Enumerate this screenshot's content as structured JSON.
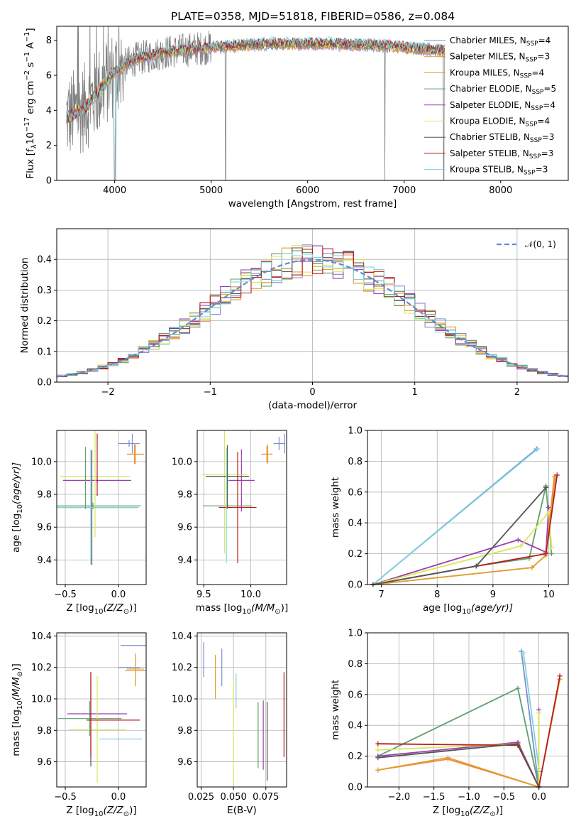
{
  "figure_title": "PLATE=0358, MJD=51818, FIBERID=0586, z=0.084",
  "models": [
    {
      "name": "Chabrier MILES",
      "nssp": "4",
      "color": "#7a8fd0"
    },
    {
      "name": "Salpeter MILES",
      "nssp": "3",
      "color": "#f08a4b"
    },
    {
      "name": "Kroupa MILES",
      "nssp": "4",
      "color": "#e0a030"
    },
    {
      "name": "Chabrier ELODIE",
      "nssp": "5",
      "color": "#5e9e6e"
    },
    {
      "name": "Salpeter ELODIE",
      "nssp": "4",
      "color": "#9b3db0"
    },
    {
      "name": "Kroupa ELODIE",
      "nssp": "4",
      "color": "#d8e85a"
    },
    {
      "name": "Chabrier STELIB",
      "nssp": "3",
      "color": "#555555"
    },
    {
      "name": "Salpeter STELIB",
      "nssp": "3",
      "color": "#b81c1c"
    },
    {
      "name": "Kroupa STELIB",
      "nssp": "3",
      "color": "#7fd3dc"
    }
  ],
  "chart_data": [
    {
      "id": "spectrum",
      "type": "line",
      "xlabel": "wavelength [Angstrom, rest frame]",
      "ylabel": "Flux [f",
      "ylabel_sub": "λ",
      "ylabel_mid": "10",
      "ylabel_sup1": "−17",
      "ylabel_tail1": " erg cm",
      "ylabel_sup2": "−2",
      "ylabel_tail2": " s",
      "ylabel_sup3": "−1",
      "ylabel_tail3": " A",
      "ylabel_sup4": "−1",
      "ylabel_end": "]",
      "xlim": [
        3400,
        8700
      ],
      "ylim": [
        0,
        8.8
      ],
      "xticks": [
        4000,
        5000,
        6000,
        7000,
        8000
      ],
      "yticks": [
        0,
        2,
        4,
        6,
        8
      ],
      "legend_location": "right",
      "legend_sub": "SSP",
      "continuum": {
        "x": [
          3500,
          3700,
          3850,
          4000,
          4200,
          4500,
          4800,
          5000,
          5300,
          5600,
          5900,
          6200,
          6500,
          6800,
          7000,
          7200,
          7400
        ],
        "y": [
          3.6,
          4.2,
          5.2,
          6.2,
          6.9,
          7.3,
          7.5,
          7.6,
          7.7,
          7.8,
          7.8,
          7.8,
          7.75,
          7.7,
          7.6,
          7.5,
          7.4
        ]
      }
    },
    {
      "id": "residuals",
      "type": "line",
      "xlabel": "(data-model)/error",
      "ylabel": "Normed distribution",
      "xlim": [
        -2.5,
        2.5
      ],
      "ylim": [
        0,
        0.5
      ],
      "xticks": [
        -2,
        -1,
        0,
        1,
        2
      ],
      "yticks": [
        0.0,
        0.1,
        0.2,
        0.3,
        0.4
      ],
      "grid": true,
      "legend_label": "𝒩(0, 1)",
      "legend_location": "top-right",
      "reference": "normal distribution, mean 0, sigma 1"
    },
    {
      "id": "age-vs-Z",
      "type": "scatter",
      "xlabel": "Z [log",
      "xlabel_sub": "10",
      "xlabel_rest": "(Z/Z",
      "xlabel_sub2": "⊙",
      "xlabel_end": ")]",
      "ylabel": "age  [log",
      "ylabel_sub": "10",
      "ylabel_rest": "(age/yr)]",
      "xlim": [
        -0.58,
        0.26
      ],
      "ylim": [
        9.25,
        10.19
      ],
      "xticks": [
        -0.5,
        0.0
      ],
      "yticks": [
        9.4,
        9.6,
        9.8,
        10.0
      ],
      "grid": true,
      "points": [
        {
          "m": 0,
          "x": 0.1,
          "y": 10.11,
          "xerr": 0.1,
          "yerr": 0.02
        },
        {
          "m": 1,
          "x": 0.16,
          "y": 10.045,
          "xerr": 0.08,
          "yerr": 0.06
        },
        {
          "m": 2,
          "x": 0.15,
          "y": 10.045,
          "xerr": 0.06,
          "yerr": 0.06
        },
        {
          "m": 3,
          "x": -0.24,
          "y": 9.73,
          "xerr": 0.45,
          "yerr": 0.02
        },
        {
          "m": 4,
          "x": -0.2,
          "y": 9.885,
          "xerr": 0.32,
          "yerr": 0.02
        },
        {
          "m": 5,
          "x": -0.22,
          "y": 9.91,
          "xerr": 0.33,
          "yerr": 0.37
        },
        {
          "m": 6,
          "x": -0.25,
          "y": 9.72,
          "xerr": 0.43,
          "yerr": 0.35
        },
        {
          "m": 7,
          "x": -0.2,
          "y": 9.98,
          "xerr": 0.0,
          "yerr": 0.19
        },
        {
          "m": 8,
          "x": -0.26,
          "y": 9.72,
          "xerr": 0.45,
          "yerr": 0.35
        },
        {
          "m": 3,
          "x": -0.31,
          "y": 9.9,
          "xerr": 0.0,
          "yerr": 0.19
        },
        {
          "m": 0,
          "x": 0.13,
          "y": 10.11,
          "xerr": 0.0,
          "yerr": 0.06
        }
      ]
    },
    {
      "id": "age-vs-mass",
      "type": "scatter",
      "xlabel": "mass [log",
      "xlabel_sub": "10",
      "xlabel_rest": "(M/M",
      "xlabel_sub2": "⊙",
      "xlabel_end": ")]",
      "xlim": [
        9.43,
        10.38
      ],
      "ylim": [
        9.25,
        10.19
      ],
      "xticks": [
        9.5,
        10.0
      ],
      "yticks": [
        9.4,
        9.6,
        9.8,
        10.0
      ],
      "grid": true,
      "points": [
        {
          "m": 0,
          "x": 10.3,
          "y": 10.11,
          "xerr": 0.06,
          "yerr": 0.04
        },
        {
          "m": 1,
          "x": 10.17,
          "y": 10.045,
          "xerr": 0.06,
          "yerr": 0.05
        },
        {
          "m": 2,
          "x": 10.18,
          "y": 10.045,
          "xerr": 0.05,
          "yerr": 0.06
        },
        {
          "m": 3,
          "x": 9.75,
          "y": 9.73,
          "xerr": 0.26,
          "yerr": 0.02
        },
        {
          "m": 4,
          "x": 9.9,
          "y": 9.885,
          "xerr": 0.14,
          "yerr": 0.19
        },
        {
          "m": 5,
          "x": 9.72,
          "y": 9.92,
          "xerr": 0.24,
          "yerr": 0.48
        },
        {
          "m": 6,
          "x": 9.75,
          "y": 9.91,
          "xerr": 0.23,
          "yerr": 0.19
        },
        {
          "m": 7,
          "x": 9.86,
          "y": 9.72,
          "xerr": 0.2,
          "yerr": 0.34
        },
        {
          "m": 8,
          "x": 9.74,
          "y": 9.73,
          "xerr": 0.0,
          "yerr": 0.35
        },
        {
          "m": 0,
          "x": 10.36,
          "y": 10.11,
          "xerr": 0.0,
          "yerr": 0.06
        }
      ]
    },
    {
      "id": "massweight-vs-age",
      "type": "line",
      "xlabel": "age  [log",
      "xlabel_sub": "10",
      "xlabel_rest": "(age/yr)]",
      "ylabel": "mass weight",
      "xlim": [
        6.75,
        10.35
      ],
      "ylim": [
        0,
        1.0
      ],
      "xticks": [
        7,
        8,
        9,
        10
      ],
      "yticks": [
        0.0,
        0.2,
        0.4,
        0.6,
        0.8,
        1.0
      ],
      "grid": true,
      "series": [
        {
          "m": 0,
          "x": [
            6.85,
            9.78
          ],
          "y": [
            0.0,
            0.88
          ]
        },
        {
          "m": 8,
          "x": [
            6.85,
            9.8
          ],
          "y": [
            0.0,
            0.88
          ]
        },
        {
          "m": 3,
          "x": [
            6.85,
            8.7,
            9.65,
            9.95,
            10.05
          ],
          "y": [
            0.0,
            0.12,
            0.17,
            0.64,
            0.2
          ]
        },
        {
          "m": 4,
          "x": [
            6.85,
            9.45,
            9.95,
            10.0
          ],
          "y": [
            0.0,
            0.29,
            0.21,
            0.5
          ]
        },
        {
          "m": 5,
          "x": [
            6.85,
            9.5,
            10.0,
            10.05
          ],
          "y": [
            0.0,
            0.25,
            0.47,
            0.24
          ]
        },
        {
          "m": 1,
          "x": [
            6.85,
            9.7,
            9.95,
            10.1
          ],
          "y": [
            0.0,
            0.11,
            0.19,
            0.7
          ]
        },
        {
          "m": 2,
          "x": [
            6.85,
            9.7,
            9.95,
            10.12
          ],
          "y": [
            0.0,
            0.11,
            0.19,
            0.7
          ]
        },
        {
          "m": 7,
          "x": [
            6.85,
            9.95,
            10.15
          ],
          "y": [
            0.0,
            0.2,
            0.71
          ]
        },
        {
          "m": 6,
          "x": [
            6.85,
            8.7,
            9.95
          ],
          "y": [
            0.0,
            0.12,
            0.63
          ]
        }
      ]
    },
    {
      "id": "mass-vs-Z",
      "type": "scatter",
      "xlabel": "Z [log",
      "xlabel_sub": "10",
      "xlabel_rest": "(Z/Z",
      "xlabel_sub2": "⊙",
      "xlabel_end": ")]",
      "ylabel": "mass [log",
      "ylabel_sub": "10",
      "ylabel_rest": "(M/M",
      "ylabel_sub2": "⊙",
      "ylabel_end": ")]",
      "xlim": [
        -0.58,
        0.26
      ],
      "ylim": [
        9.44,
        10.42
      ],
      "xticks": [
        -0.5,
        0.0
      ],
      "yticks": [
        9.6,
        9.8,
        10.0,
        10.2,
        10.4
      ],
      "grid": true,
      "points": [
        {
          "m": 0,
          "x": 0.1,
          "y": 10.2,
          "xerr": 0.1,
          "yerr": 0.0
        },
        {
          "m": 1,
          "x": 0.16,
          "y": 10.18,
          "xerr": 0.1,
          "yerr": 0.1
        },
        {
          "m": 2,
          "x": 0.16,
          "y": 10.19,
          "xerr": 0.08,
          "yerr": 0.1
        },
        {
          "m": 3,
          "x": -0.27,
          "y": 9.875,
          "xerr": 0.3,
          "yerr": 0.11
        },
        {
          "m": 4,
          "x": -0.2,
          "y": 9.905,
          "xerr": 0.28,
          "yerr": 0.0
        },
        {
          "m": 5,
          "x": -0.2,
          "y": 9.805,
          "xerr": 0.27,
          "yerr": 0.34
        },
        {
          "m": 6,
          "x": -0.26,
          "y": 9.87,
          "xerr": 0.0,
          "yerr": 0.3
        },
        {
          "m": 7,
          "x": -0.05,
          "y": 9.865,
          "xerr": 0.25,
          "yerr": 0.0
        },
        {
          "m": 8,
          "x": 0.02,
          "y": 9.745,
          "xerr": 0.2,
          "yerr": 0.0
        },
        {
          "m": 7,
          "x": -0.26,
          "y": 9.9,
          "xerr": 0.0,
          "yerr": 0.27
        },
        {
          "m": 0,
          "x": 0.16,
          "y": 10.34,
          "xerr": 0.14,
          "yerr": 0.0
        }
      ]
    },
    {
      "id": "mass-vs-ebv",
      "type": "scatter",
      "xlabel": "E(B-V)",
      "xlim": [
        0.022,
        0.091
      ],
      "ylim": [
        9.44,
        10.42
      ],
      "xticks": [
        0.025,
        0.05,
        0.075
      ],
      "yticks": [
        9.6,
        9.8,
        10.0,
        10.2,
        10.4
      ],
      "grid": true,
      "points": [
        {
          "m": 0,
          "x": 0.027,
          "y": 10.25,
          "xerr": 0.0,
          "yerr": 0.11
        },
        {
          "m": 2,
          "x": 0.036,
          "y": 10.14,
          "xerr": 0.0,
          "yerr": 0.14
        },
        {
          "m": 0,
          "x": 0.041,
          "y": 10.2,
          "xerr": 0.0,
          "yerr": 0.12
        },
        {
          "m": 5,
          "x": 0.05,
          "y": 9.8,
          "xerr": 0.0,
          "yerr": 0.34
        },
        {
          "m": 8,
          "x": 0.052,
          "y": 10.05,
          "xerr": 0.0,
          "yerr": 0.11
        },
        {
          "m": 3,
          "x": 0.069,
          "y": 9.77,
          "xerr": 0.0,
          "yerr": 0.21
        },
        {
          "m": 4,
          "x": 0.073,
          "y": 9.77,
          "xerr": 0.0,
          "yerr": 0.22
        },
        {
          "m": 6,
          "x": 0.076,
          "y": 9.73,
          "xerr": 0.0,
          "yerr": 0.25
        },
        {
          "m": 7,
          "x": 0.089,
          "y": 9.9,
          "xerr": 0.0,
          "yerr": 0.27
        }
      ]
    },
    {
      "id": "massweight-vs-Z",
      "type": "line",
      "xlabel": "Z [log",
      "xlabel_sub": "10",
      "xlabel_rest": "(Z/Z",
      "xlabel_sub2": "⊙",
      "xlabel_end": ")]",
      "ylabel": "mass weight",
      "xlim": [
        -2.45,
        0.42
      ],
      "ylim": [
        0,
        1.0
      ],
      "xticks": [
        -2.0,
        -1.5,
        -1.0,
        -0.5,
        0.0
      ],
      "yticks": [
        0.0,
        0.2,
        0.4,
        0.6,
        0.8,
        1.0
      ],
      "grid": true,
      "series": [
        {
          "m": 0,
          "x": [
            -0.25,
            0.0
          ],
          "y": [
            0.88,
            0.0
          ]
        },
        {
          "m": 8,
          "x": [
            -0.22,
            0.0
          ],
          "y": [
            0.87,
            0.12
          ]
        },
        {
          "m": 3,
          "x": [
            -2.3,
            -0.3,
            0.0,
            0.0
          ],
          "y": [
            0.2,
            0.64,
            0.0,
            0.1
          ]
        },
        {
          "m": 4,
          "x": [
            -2.3,
            -0.3,
            0.0,
            0.0
          ],
          "y": [
            0.2,
            0.29,
            0.0,
            0.5
          ]
        },
        {
          "m": 5,
          "x": [
            -2.3,
            -0.3,
            0.0,
            0.0
          ],
          "y": [
            0.24,
            0.28,
            0.0,
            0.48
          ]
        },
        {
          "m": 1,
          "x": [
            -2.3,
            -1.3,
            0.0,
            0.3
          ],
          "y": [
            0.11,
            0.18,
            0.0,
            0.7
          ]
        },
        {
          "m": 2,
          "x": [
            -2.3,
            -1.3,
            0.0,
            0.3
          ],
          "y": [
            0.11,
            0.19,
            0.0,
            0.7
          ]
        },
        {
          "m": 7,
          "x": [
            -2.3,
            -0.3,
            0.0,
            0.3
          ],
          "y": [
            0.28,
            0.27,
            0.0,
            0.72
          ]
        },
        {
          "m": 6,
          "x": [
            -2.3,
            -0.3,
            0.0
          ],
          "y": [
            0.19,
            0.28,
            0.0
          ]
        }
      ]
    }
  ]
}
